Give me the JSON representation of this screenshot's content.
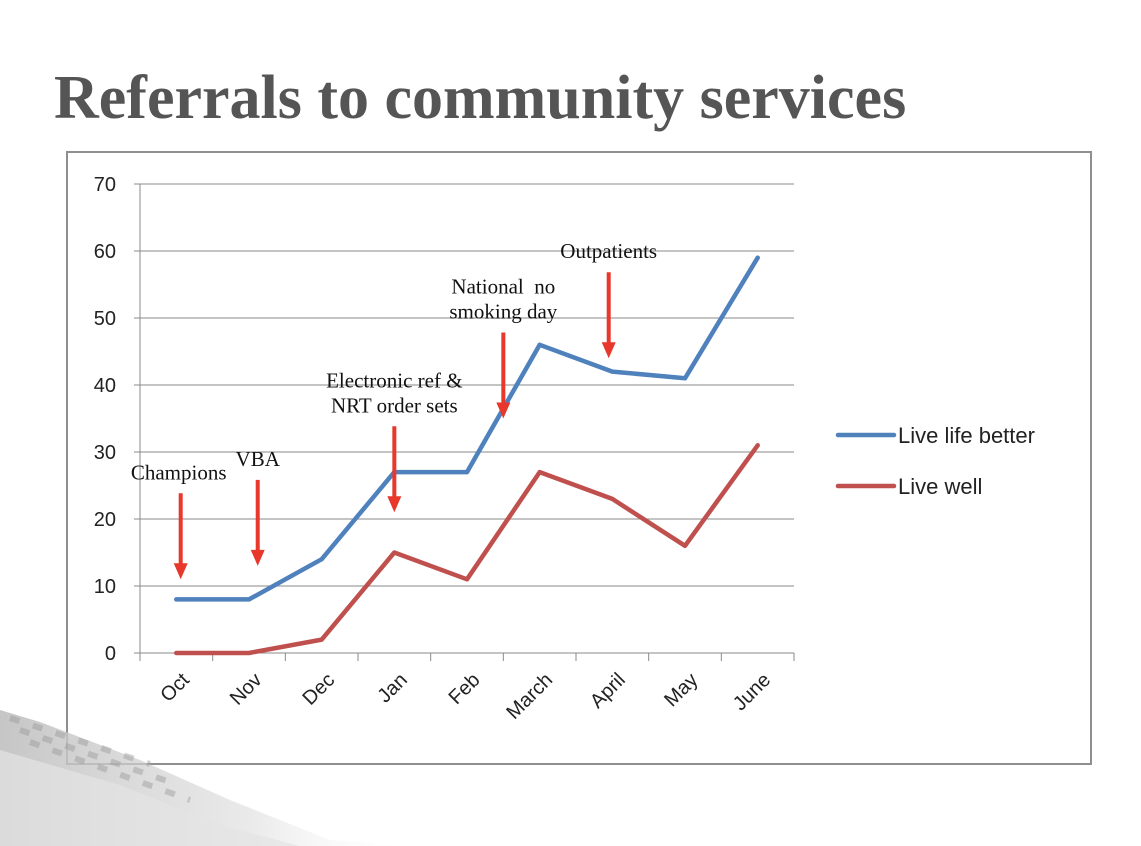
{
  "slide": {
    "title": "Referrals to community services"
  },
  "chart_data": {
    "type": "line",
    "title": "",
    "xlabel": "",
    "ylabel": "",
    "categories": [
      "Oct",
      "Nov",
      "Dec",
      "Jan",
      "Feb",
      "March",
      "April",
      "May",
      "June"
    ],
    "ylim": [
      0,
      70
    ],
    "yticks": [
      0,
      10,
      20,
      30,
      40,
      50,
      60,
      70
    ],
    "grid": true,
    "legend_position": "right",
    "series": [
      {
        "name": "Live life better",
        "color": "#4f81bd",
        "values": [
          8,
          8,
          14,
          27,
          27,
          46,
          42,
          41,
          59
        ]
      },
      {
        "name": "Live well",
        "color": "#c0504d",
        "values": [
          0,
          0,
          2,
          15,
          11,
          27,
          23,
          16,
          31
        ]
      }
    ],
    "annotations": [
      {
        "lines": [
          "Champions"
        ],
        "x_index": 0.06,
        "y_value": 11,
        "color": "#e8372b"
      },
      {
        "lines": [
          "VBA"
        ],
        "x_index": 1.12,
        "y_value": 13,
        "color": "#e8372b"
      },
      {
        "lines": [
          "Electronic ref &",
          "NRT order sets"
        ],
        "x_index": 3.0,
        "y_value": 21,
        "color": "#e8372b"
      },
      {
        "lines": [
          "National  no",
          "smoking day"
        ],
        "x_index": 4.5,
        "y_value": 35,
        "color": "#e8372b"
      },
      {
        "lines": [
          "Outpatients"
        ],
        "x_index": 5.95,
        "y_value": 44,
        "color": "#e8372b"
      }
    ]
  }
}
